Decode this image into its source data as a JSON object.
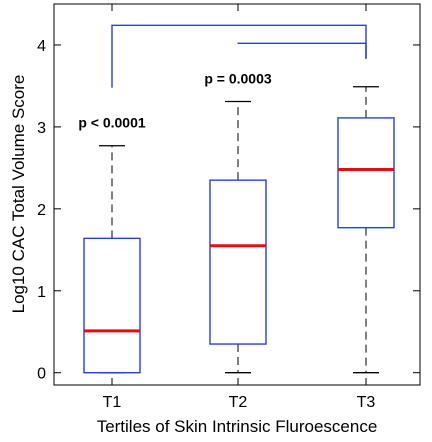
{
  "chart_data": {
    "type": "box",
    "xlabel": "Tertiles of Skin Intrinsic Fluroescence",
    "ylabel": "Log10 CAC Total Volume Score",
    "categories": [
      "T1",
      "T2",
      "T3"
    ],
    "ylim": [
      -0.15,
      4.5
    ],
    "yticks": [
      0,
      1,
      2,
      3,
      4
    ],
    "grid": false,
    "boxes": [
      {
        "category": "T1",
        "whisker_low": 0.0,
        "q1": 0.0,
        "median": 0.51,
        "q3": 1.64,
        "whisker_high": 2.77
      },
      {
        "category": "T2",
        "whisker_low": 0.0,
        "q1": 0.35,
        "median": 1.55,
        "q3": 2.35,
        "whisker_high": 3.31
      },
      {
        "category": "T3",
        "whisker_low": 0.0,
        "q1": 1.77,
        "median": 2.48,
        "q3": 3.11,
        "whisker_high": 3.49
      }
    ],
    "comparisons": [
      {
        "from": "T1",
        "to": "T3",
        "bracket_y": 4.24,
        "label": "p < 0.0001"
      },
      {
        "from": "T2",
        "to": "T3",
        "bracket_y": 4.02,
        "label": "p = 0.0003"
      }
    ],
    "colors": {
      "box": "#2b3fd6",
      "median": "#e01010",
      "whisker": "#000000",
      "bracket": "#2b3fd6"
    }
  }
}
